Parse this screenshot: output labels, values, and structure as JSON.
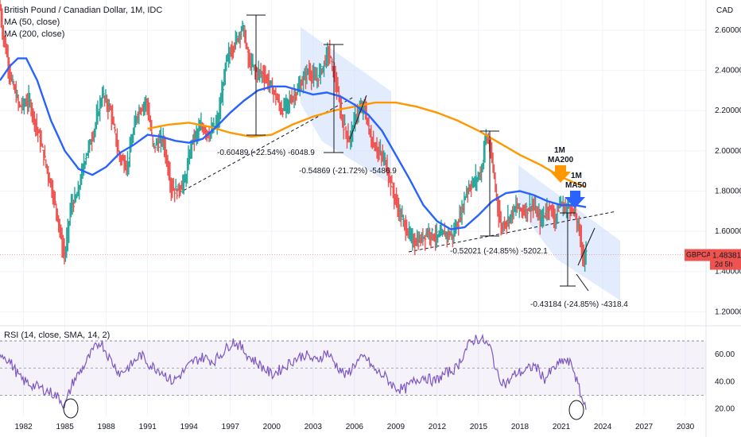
{
  "legend": {
    "title": "British Pound / Canadian Dollar, 1M, IDC",
    "ma50": "MA (50, close)",
    "ma200": "MA (200, close)",
    "rsi": "RSI (14, close, SMA, 14, 2)"
  },
  "colors": {
    "up": "#26a69a",
    "down": "#ef5350",
    "ma50": "#2962ff",
    "ma200": "#ff9800",
    "rsi": "#7e57c2",
    "channel": "#cfe0fb",
    "price_tag": "#ef5350",
    "grid": "#f0f3fa"
  },
  "price_tag": {
    "symbol": "GBPCAD",
    "value": "1.48381",
    "time": "2d 5h"
  },
  "chart_data": [
    {
      "type": "candlestick",
      "title": "British Pound / Canadian Dollar, 1M, IDC",
      "axis_unit": "CAD",
      "ylim": [
        1.15,
        2.75
      ],
      "xlim": [
        1980.3,
        2031.5
      ],
      "y_ticks": [
        "2.60000",
        "2.40000",
        "2.20000",
        "2.00000",
        "1.80000",
        "1.60000",
        "1.40000",
        "1.20000"
      ],
      "y_tick_values": [
        2.6,
        2.4,
        2.2,
        2.0,
        1.8,
        1.6,
        1.4,
        1.2
      ],
      "x_ticks": [
        "1982",
        "1985",
        "1988",
        "1991",
        "1994",
        "1997",
        "2000",
        "2003",
        "2006",
        "2009",
        "2012",
        "2015",
        "2018",
        "2021",
        "2024",
        "2027",
        "2030"
      ],
      "x_tick_values": [
        1982,
        1985,
        1988,
        1991,
        1994,
        1997,
        2000,
        2003,
        2006,
        2009,
        2012,
        2015,
        2018,
        2021,
        2024,
        2027,
        2030
      ],
      "price_path": [
        [
          1980.3,
          2.75
        ],
        [
          1980.6,
          2.58
        ],
        [
          1981.2,
          2.35
        ],
        [
          1981.8,
          2.22
        ],
        [
          1982.5,
          2.25
        ],
        [
          1983.3,
          2.05
        ],
        [
          1984.0,
          1.85
        ],
        [
          1984.5,
          1.7
        ],
        [
          1984.9,
          1.52
        ],
        [
          1985.1,
          1.48
        ],
        [
          1985.5,
          1.72
        ],
        [
          1986.0,
          1.78
        ],
        [
          1986.5,
          1.95
        ],
        [
          1987.2,
          2.1
        ],
        [
          1987.8,
          2.28
        ],
        [
          1988.4,
          2.2
        ],
        [
          1989.0,
          1.98
        ],
        [
          1989.6,
          1.92
        ],
        [
          1990.3,
          2.18
        ],
        [
          1991.0,
          2.25
        ],
        [
          1991.5,
          2.02
        ],
        [
          1992.2,
          2.06
        ],
        [
          1992.8,
          1.82
        ],
        [
          1993.2,
          1.8
        ],
        [
          1993.8,
          1.85
        ],
        [
          1994.3,
          2.05
        ],
        [
          1995.0,
          2.12
        ],
        [
          1995.6,
          2.08
        ],
        [
          1996.2,
          2.15
        ],
        [
          1996.8,
          2.45
        ],
        [
          1997.5,
          2.55
        ],
        [
          1998.0,
          2.62
        ],
        [
          1998.4,
          2.45
        ],
        [
          1998.9,
          2.4
        ],
        [
          1999.5,
          2.38
        ],
        [
          2000.2,
          2.3
        ],
        [
          2000.8,
          2.2
        ],
        [
          2001.4,
          2.25
        ],
        [
          2002.0,
          2.3
        ],
        [
          2002.7,
          2.4
        ],
        [
          2003.3,
          2.35
        ],
        [
          2003.8,
          2.42
        ],
        [
          2004.2,
          2.5
        ],
        [
          2004.7,
          2.35
        ],
        [
          2005.2,
          2.15
        ],
        [
          2005.7,
          2.05
        ],
        [
          2006.2,
          2.18
        ],
        [
          2006.8,
          2.22
        ],
        [
          2007.3,
          2.05
        ],
        [
          2007.8,
          2.0
        ],
        [
          2008.3,
          1.95
        ],
        [
          2008.8,
          1.82
        ],
        [
          2009.3,
          1.7
        ],
        [
          2009.8,
          1.62
        ],
        [
          2010.3,
          1.55
        ],
        [
          2010.8,
          1.55
        ],
        [
          2011.4,
          1.6
        ],
        [
          2012.0,
          1.57
        ],
        [
          2012.6,
          1.59
        ],
        [
          2013.2,
          1.58
        ],
        [
          2013.7,
          1.66
        ],
        [
          2014.2,
          1.8
        ],
        [
          2014.8,
          1.85
        ],
        [
          2015.3,
          1.9
        ],
        [
          2015.6,
          2.08
        ],
        [
          2015.9,
          2.02
        ],
        [
          2016.3,
          1.82
        ],
        [
          2016.7,
          1.62
        ],
        [
          2017.2,
          1.66
        ],
        [
          2017.8,
          1.72
        ],
        [
          2018.4,
          1.7
        ],
        [
          2019.0,
          1.73
        ],
        [
          2019.6,
          1.65
        ],
        [
          2020.2,
          1.73
        ],
        [
          2020.6,
          1.66
        ],
        [
          2021.0,
          1.74
        ],
        [
          2021.4,
          1.71
        ],
        [
          2021.8,
          1.73
        ],
        [
          2022.2,
          1.65
        ],
        [
          2022.5,
          1.57
        ],
        [
          2022.7,
          1.45
        ],
        [
          2022.8,
          1.48
        ]
      ],
      "ma50": [
        [
          1980.3,
          2.35
        ],
        [
          1981.0,
          2.42
        ],
        [
          1981.6,
          2.46
        ],
        [
          1982.2,
          2.46
        ],
        [
          1983.0,
          2.35
        ],
        [
          1984.0,
          2.15
        ],
        [
          1985.0,
          2.0
        ],
        [
          1986.0,
          1.91
        ],
        [
          1987.0,
          1.88
        ],
        [
          1988.0,
          1.92
        ],
        [
          1989.0,
          1.99
        ],
        [
          1990.0,
          2.03
        ],
        [
          1991.0,
          2.08
        ],
        [
          1992.0,
          2.07
        ],
        [
          1993.0,
          2.05
        ],
        [
          1994.0,
          2.04
        ],
        [
          1995.0,
          2.06
        ],
        [
          1996.0,
          2.12
        ],
        [
          1997.0,
          2.19
        ],
        [
          1998.0,
          2.25
        ],
        [
          1999.0,
          2.3
        ],
        [
          2000.0,
          2.32
        ],
        [
          2001.0,
          2.32
        ],
        [
          2002.0,
          2.3
        ],
        [
          2003.0,
          2.28
        ],
        [
          2004.0,
          2.29
        ],
        [
          2005.0,
          2.27
        ],
        [
          2006.0,
          2.23
        ],
        [
          2007.0,
          2.18
        ],
        [
          2008.0,
          2.1
        ],
        [
          2009.0,
          1.98
        ],
        [
          2010.0,
          1.86
        ],
        [
          2011.0,
          1.73
        ],
        [
          2012.0,
          1.65
        ],
        [
          2013.0,
          1.61
        ],
        [
          2014.0,
          1.62
        ],
        [
          2015.0,
          1.68
        ],
        [
          2016.0,
          1.75
        ],
        [
          2017.0,
          1.79
        ],
        [
          2018.0,
          1.8
        ],
        [
          2019.0,
          1.78
        ],
        [
          2020.0,
          1.75
        ],
        [
          2021.0,
          1.73
        ],
        [
          2022.0,
          1.73
        ],
        [
          2022.8,
          1.72
        ]
      ],
      "ma200": [
        [
          1991.0,
          2.11
        ],
        [
          1992.5,
          2.13
        ],
        [
          1994.0,
          2.14
        ],
        [
          1995.5,
          2.12
        ],
        [
          1997.0,
          2.09
        ],
        [
          1998.5,
          2.07
        ],
        [
          2000.0,
          2.08
        ],
        [
          2001.5,
          2.13
        ],
        [
          2003.0,
          2.17
        ],
        [
          2004.5,
          2.2
        ],
        [
          2006.0,
          2.22
        ],
        [
          2007.5,
          2.24
        ],
        [
          2009.0,
          2.24
        ],
        [
          2010.5,
          2.22
        ],
        [
          2012.0,
          2.19
        ],
        [
          2013.5,
          2.15
        ],
        [
          2015.0,
          2.1
        ],
        [
          2016.5,
          2.04
        ],
        [
          2018.0,
          1.98
        ],
        [
          2019.5,
          1.93
        ],
        [
          2021.0,
          1.87
        ],
        [
          2022.0,
          1.84
        ],
        [
          2022.8,
          1.82
        ]
      ],
      "current_price": 1.48381
    },
    {
      "type": "line",
      "title": "RSI (14, close, SMA, 14, 2)",
      "ylim": [
        15,
        80
      ],
      "y_ticks": [
        "60.00",
        "40.00",
        "20.00"
      ],
      "y_tick_values": [
        60,
        40,
        20
      ],
      "band": [
        30,
        70
      ],
      "midline": 50,
      "rsi": [
        [
          1980.3,
          62
        ],
        [
          1981.0,
          55
        ],
        [
          1981.8,
          42
        ],
        [
          1982.5,
          38
        ],
        [
          1983.3,
          35
        ],
        [
          1984.0,
          32
        ],
        [
          1984.6,
          28
        ],
        [
          1985.0,
          22
        ],
        [
          1985.6,
          40
        ],
        [
          1986.3,
          50
        ],
        [
          1987.0,
          62
        ],
        [
          1987.6,
          70
        ],
        [
          1988.2,
          58
        ],
        [
          1989.0,
          46
        ],
        [
          1989.8,
          52
        ],
        [
          1990.5,
          60
        ],
        [
          1991.2,
          52
        ],
        [
          1992.0,
          48
        ],
        [
          1992.8,
          40
        ],
        [
          1993.5,
          46
        ],
        [
          1994.3,
          55
        ],
        [
          1995.0,
          58
        ],
        [
          1995.8,
          55
        ],
        [
          1996.5,
          62
        ],
        [
          1997.2,
          70
        ],
        [
          1997.8,
          65
        ],
        [
          1998.4,
          58
        ],
        [
          1999.2,
          52
        ],
        [
          2000.0,
          45
        ],
        [
          2000.8,
          50
        ],
        [
          2001.6,
          56
        ],
        [
          2002.4,
          60
        ],
        [
          2003.2,
          55
        ],
        [
          2004.0,
          62
        ],
        [
          2004.7,
          52
        ],
        [
          2005.4,
          44
        ],
        [
          2006.1,
          54
        ],
        [
          2006.8,
          58
        ],
        [
          2007.5,
          48
        ],
        [
          2008.2,
          44
        ],
        [
          2008.9,
          36
        ],
        [
          2009.6,
          34
        ],
        [
          2010.3,
          40
        ],
        [
          2011.0,
          44
        ],
        [
          2011.8,
          40
        ],
        [
          2012.6,
          46
        ],
        [
          2013.4,
          50
        ],
        [
          2014.2,
          66
        ],
        [
          2014.8,
          72
        ],
        [
          2015.4,
          70
        ],
        [
          2015.9,
          64
        ],
        [
          2016.4,
          44
        ],
        [
          2017.0,
          38
        ],
        [
          2017.7,
          46
        ],
        [
          2018.4,
          48
        ],
        [
          2019.1,
          52
        ],
        [
          2019.8,
          42
        ],
        [
          2020.5,
          50
        ],
        [
          2021.2,
          56
        ],
        [
          2021.8,
          52
        ],
        [
          2022.2,
          38
        ],
        [
          2022.6,
          24
        ],
        [
          2022.8,
          23
        ]
      ]
    }
  ],
  "annotations": {
    "measurements": [
      "-0.60489 (-22.54%) -6048.9",
      "-0.54869 (-21.72%) -5486.9",
      "-0.52021 (-24.85%) -5202.1",
      "-0.43184 (-24.85%) -4318.4"
    ],
    "ma200_label_1": "1M",
    "ma200_label_2": "MA200",
    "ma50_label_1": "1M",
    "ma50_label_2": "MA50"
  }
}
